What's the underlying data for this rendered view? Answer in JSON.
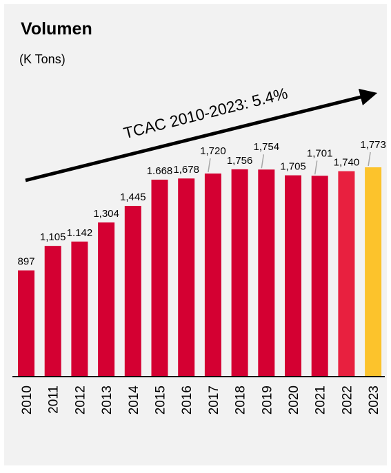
{
  "chart_data": {
    "type": "bar",
    "title": "Volumen",
    "subtitle": "(K Tons)",
    "annotation": "TCAC 2010-2023: 5.4%",
    "categories": [
      "2010",
      "2011",
      "2012",
      "2013",
      "2014",
      "2015",
      "2016",
      "2017",
      "2018",
      "2019",
      "2020",
      "2021",
      "2022",
      "2023"
    ],
    "values": [
      897,
      1105,
      1142,
      1304,
      1445,
      1668,
      1678,
      1720,
      1756,
      1754,
      1705,
      1701,
      1740,
      1773
    ],
    "value_labels": [
      "897",
      "1,105",
      "1.142",
      "1,304",
      "1,445",
      "1.668",
      "1,678",
      "1,720",
      "1,756",
      "1,754",
      "1,705",
      "1,701",
      "1,740",
      "1,773"
    ],
    "colors": [
      "#d40032",
      "#d40032",
      "#d40032",
      "#d40032",
      "#d40032",
      "#d40032",
      "#d40032",
      "#d40032",
      "#d40032",
      "#d40032",
      "#d40032",
      "#d40032",
      "#e8203f",
      "#fcc32c"
    ]
  }
}
